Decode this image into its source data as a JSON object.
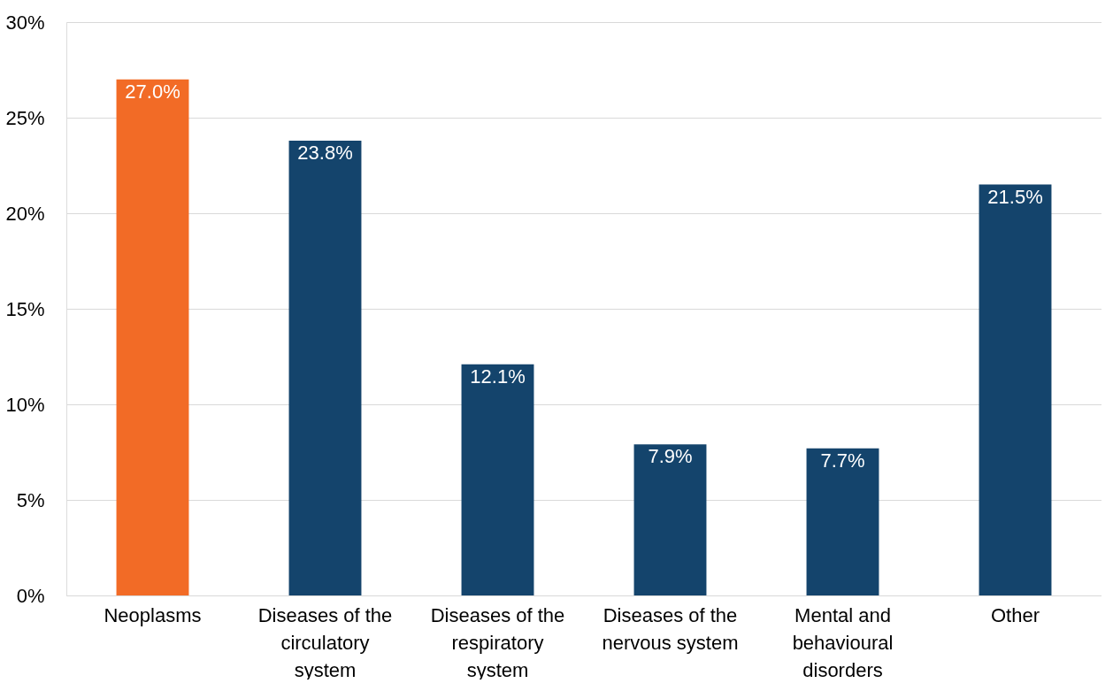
{
  "chart_data": {
    "type": "bar",
    "categories": [
      "Neoplasms",
      "Diseases of the circulatory system",
      "Diseases of the respiratory system",
      "Diseases of the nervous system",
      "Mental and behavioural disorders",
      "Other"
    ],
    "values": [
      27.0,
      23.8,
      12.1,
      7.9,
      7.7,
      21.5
    ],
    "colors": [
      "#f26b26",
      "#14446c",
      "#14446c",
      "#14446c",
      "#14446c",
      "#14446c"
    ],
    "value_labels": [
      "27.0%",
      "23.8%",
      "12.1%",
      "7.9%",
      "7.7%",
      "21.5%"
    ],
    "ylim": [
      0,
      30
    ],
    "yticks": [
      {
        "value": 0,
        "label": "0%"
      },
      {
        "value": 5,
        "label": "5%"
      },
      {
        "value": 10,
        "label": "10%"
      },
      {
        "value": 15,
        "label": "15%"
      },
      {
        "value": 20,
        "label": "20%"
      },
      {
        "value": 25,
        "label": "25%"
      },
      {
        "value": 30,
        "label": "30%"
      }
    ],
    "grid": "y"
  }
}
